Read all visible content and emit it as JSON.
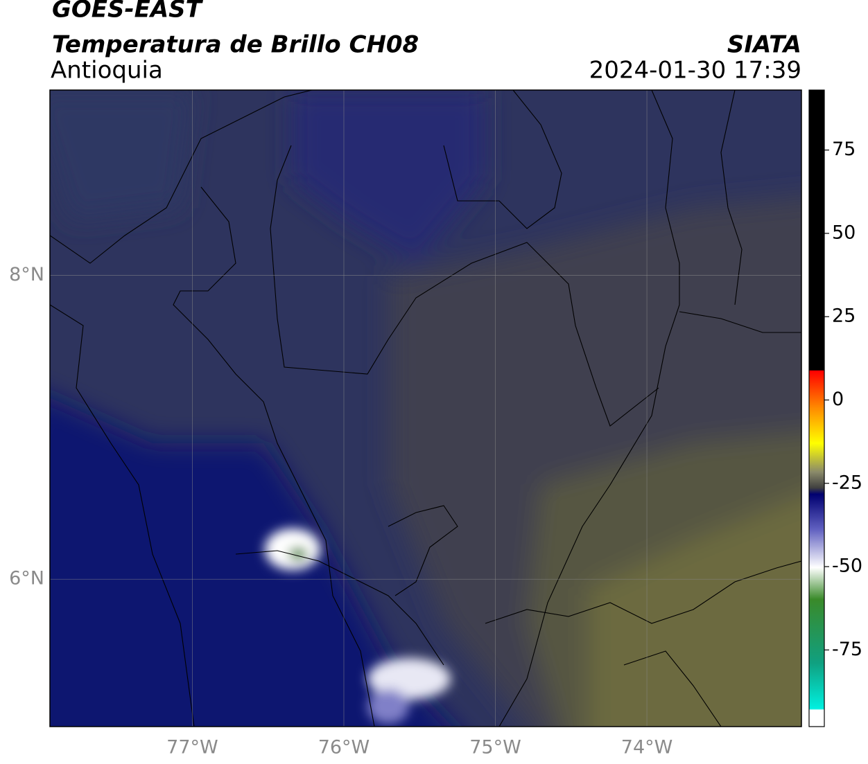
{
  "header": {
    "satellite": "GOES-EAST",
    "product": "Temperatura de Brillo CH08",
    "region": "Antioquia",
    "agency": "SIATA",
    "datetime": "2024-01-30 17:39"
  },
  "map": {
    "xlim": [
      -77.94,
      -72.98
    ],
    "ylim": [
      5.03,
      9.22
    ],
    "xticks": [
      {
        "value": -77,
        "label": "77°W"
      },
      {
        "value": -76,
        "label": "76°W"
      },
      {
        "value": -75,
        "label": "75°W"
      },
      {
        "value": -74,
        "label": "74°W"
      }
    ],
    "yticks": [
      {
        "value": 8,
        "label": "8°N"
      },
      {
        "value": 6,
        "label": "6°N"
      }
    ],
    "grid": true
  },
  "colorbar": {
    "lim": [
      -98,
      93
    ],
    "ticks": [
      75,
      50,
      25,
      0,
      -25,
      -50,
      -75
    ]
  }
}
